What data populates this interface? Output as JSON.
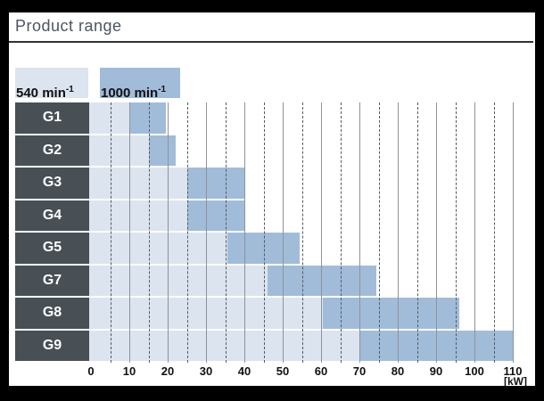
{
  "header": {
    "title": "Product range"
  },
  "legend": {
    "items": [
      {
        "name": "540",
        "label_base": "540 min",
        "label_sup": "-1",
        "color": "#dce4f0"
      },
      {
        "name": "1000",
        "label_base": "1000 min",
        "label_sup": "-1",
        "color": "#a1bcd9"
      }
    ]
  },
  "axis": {
    "unit_label": "[kW]",
    "major_ticks": [
      0,
      10,
      20,
      30,
      40,
      50,
      60,
      70,
      80,
      90,
      100,
      110
    ],
    "minor_step": 5
  },
  "chart_data": {
    "type": "bar",
    "orientation": "horizontal-range",
    "title": "Product range",
    "xlabel": "[kW]",
    "xlim": [
      0,
      110
    ],
    "grid": "vertical, solid every 10 kW, dashed every 5 kW",
    "legend_position": "top-left",
    "categories": [
      "G1",
      "G2",
      "G3",
      "G4",
      "G5",
      "G7",
      "G8",
      "G9"
    ],
    "series": [
      {
        "name": "540 min-1",
        "color": "#dce4f0",
        "ranges_kw": [
          [
            0,
            10
          ],
          [
            0,
            15
          ],
          [
            0,
            25
          ],
          [
            0,
            25
          ],
          [
            0,
            35.5
          ],
          [
            0,
            46
          ],
          [
            0,
            60.5
          ],
          [
            0,
            70
          ]
        ]
      },
      {
        "name": "1000 min-1",
        "color": "#a1bcd9",
        "ranges_kw": [
          [
            10,
            19.5
          ],
          [
            15,
            22
          ],
          [
            25,
            40
          ],
          [
            25,
            40
          ],
          [
            35.5,
            54.5
          ],
          [
            46,
            74.5
          ],
          [
            60.5,
            96
          ],
          [
            70,
            110
          ]
        ]
      }
    ]
  },
  "colors": {
    "frame": "#000000",
    "content_bg": "#ffffff",
    "title_text": "#4c5662",
    "title_rule": "#2d3339",
    "row_label_bg": "#484f55",
    "row_label_text": "#ffffff",
    "grid_major": "#8d939b",
    "grid_minor": "#55595f",
    "axis_text": "#111111"
  }
}
